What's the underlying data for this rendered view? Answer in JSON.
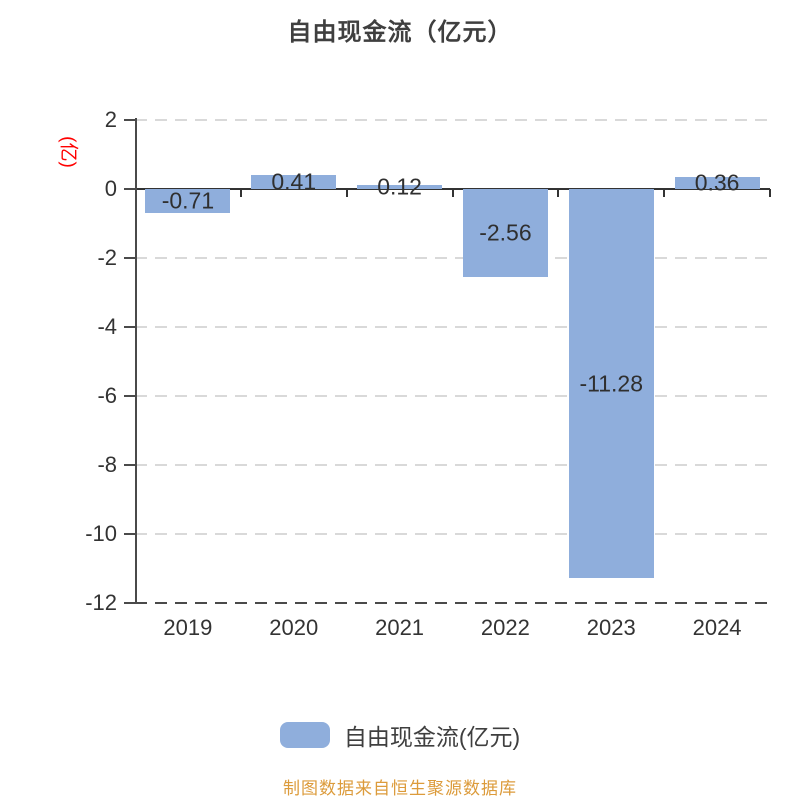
{
  "chart_data": {
    "type": "bar",
    "title": "自由现金流（亿元）",
    "y_unit_label": "(亿)",
    "categories": [
      "2019",
      "2020",
      "2021",
      "2022",
      "2023",
      "2024"
    ],
    "values": [
      -0.71,
      0.41,
      0.12,
      -2.56,
      -11.28,
      0.36
    ],
    "bar_labels": [
      "-0.71",
      "0.41",
      "0.12",
      "-2.56",
      "-11.28",
      "0.36"
    ],
    "ylim": [
      -12,
      2
    ],
    "ytick_interval": 2,
    "ytick_values": [
      2,
      0,
      -2,
      -4,
      -6,
      -8,
      -10,
      -12
    ],
    "ytick_labels": [
      "2",
      "0",
      "-2",
      "-4",
      "-6",
      "-8",
      "-10",
      "-12"
    ],
    "grid": "horizontal-dashed",
    "legend": {
      "position": "bottom",
      "label": "自由现金流(亿元)"
    },
    "footer_note": "制图数据来自恒生聚源数据库",
    "colors": {
      "bar_fill": "#8FAEDC",
      "title_text": "#3F3F3F",
      "axis_text": "#333333",
      "bar_label_text": "#2F2F2F",
      "y_unit_text": "#FF0000",
      "gridline": "#D9D9D9",
      "axis_line": "#4A4A4A",
      "zero_line": "#333333",
      "footer_text": "#DC9B3B",
      "background": "#FFFFFF"
    }
  }
}
